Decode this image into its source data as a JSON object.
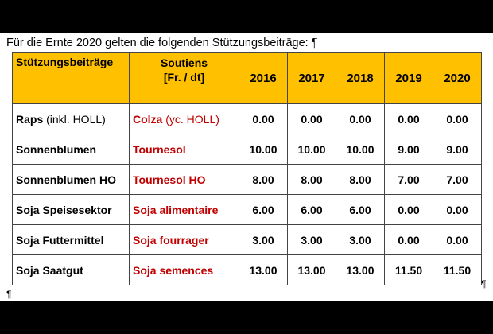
{
  "intro": "Für die Ernte 2020 gelten die folgenden Stützungsbeiträge: ¶",
  "header": {
    "de": "Stützungsbeiträge",
    "fr_line1": "Soutiens",
    "fr_line2": "[Fr. / dt]",
    "years": [
      "2016",
      "2017",
      "2018",
      "2019",
      "2020"
    ]
  },
  "rows": [
    {
      "de_main": "Raps",
      "de_extra": " (inkl. HOLL)",
      "fr_main": "Colza",
      "fr_extra": " (yc. HOLL)",
      "values": [
        "0.00",
        "0.00",
        "0.00",
        "0.00",
        "0.00"
      ]
    },
    {
      "de_main": "Sonnenblumen",
      "de_extra": "",
      "fr_main": "Tournesol",
      "fr_extra": "",
      "values": [
        "10.00",
        "10.00",
        "10.00",
        "9.00",
        "9.00"
      ]
    },
    {
      "de_main": "Sonnenblumen HO",
      "de_extra": "",
      "fr_main": "Tournesol HO",
      "fr_extra": "",
      "values": [
        "8.00",
        "8.00",
        "8.00",
        "7.00",
        "7.00"
      ]
    },
    {
      "de_main": "Soja Speisesektor",
      "de_extra": "",
      "fr_main": "Soja alimentaire",
      "fr_extra": "",
      "values": [
        "6.00",
        "6.00",
        "6.00",
        "0.00",
        "0.00"
      ]
    },
    {
      "de_main": "Soja Futtermittel",
      "de_extra": "",
      "fr_main": "Soja fourrager",
      "fr_extra": "",
      "values": [
        "3.00",
        "3.00",
        "3.00",
        "0.00",
        "0.00"
      ]
    },
    {
      "de_main": "Soja Saatgut",
      "de_extra": "",
      "fr_main": "Soja semences",
      "fr_extra": "",
      "values": [
        "13.00",
        "13.00",
        "13.00",
        "11.50",
        "11.50"
      ]
    }
  ],
  "marks": {
    "row_end": "¶",
    "paragraph_end": "¶"
  },
  "colors": {
    "header_bg": "#ffc000",
    "french_text": "#c00000",
    "border": "#444444"
  }
}
